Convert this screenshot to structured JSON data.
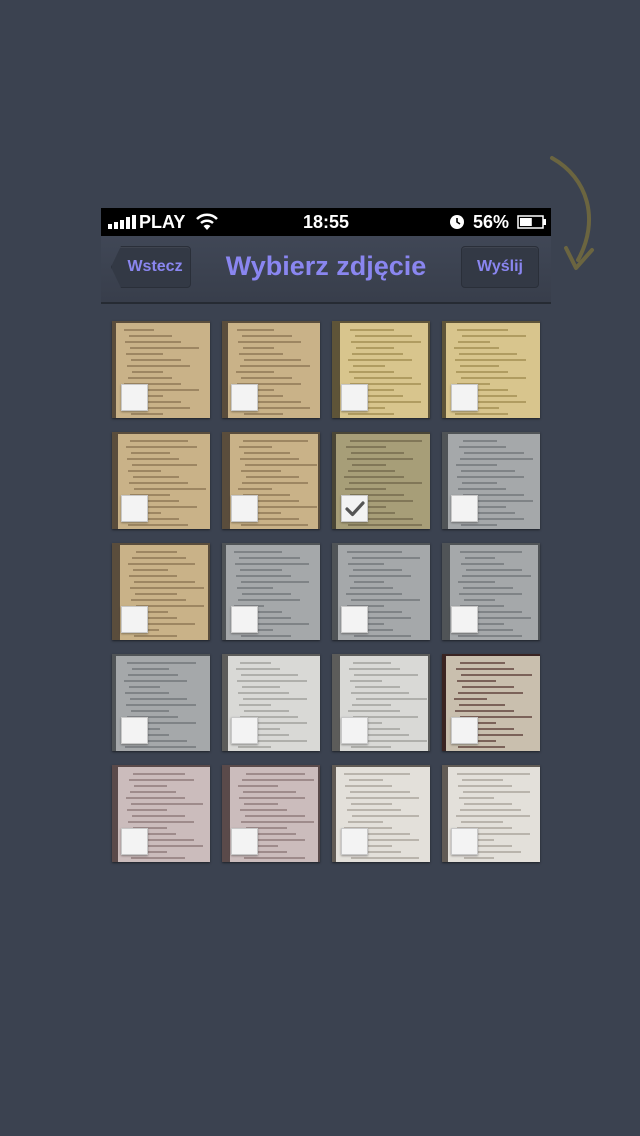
{
  "status_bar": {
    "carrier": "PLAY",
    "time": "18:55",
    "battery_percent": "56%",
    "battery_level": 0.56
  },
  "nav": {
    "title": "Wybierz zdjęcie",
    "back_label": "Wstecz",
    "send_label": "Wyślij"
  },
  "colors": {
    "accent": "#8a86f0",
    "background": "#3b4250"
  },
  "photos": [
    {
      "tone": "warm",
      "checked": false
    },
    {
      "tone": "warm",
      "checked": false
    },
    {
      "tone": "yellow",
      "checked": false
    },
    {
      "tone": "yellow",
      "checked": false
    },
    {
      "tone": "warm",
      "checked": false
    },
    {
      "tone": "warm",
      "checked": false
    },
    {
      "tone": "olive",
      "checked": true
    },
    {
      "tone": "gray",
      "checked": false
    },
    {
      "tone": "warm",
      "checked": false
    },
    {
      "tone": "gray",
      "checked": false
    },
    {
      "tone": "gray",
      "checked": false
    },
    {
      "tone": "gray",
      "checked": false
    },
    {
      "tone": "gray",
      "checked": false
    },
    {
      "tone": "light",
      "checked": false
    },
    {
      "tone": "light",
      "checked": false
    },
    {
      "tone": "dark",
      "checked": false
    },
    {
      "tone": "pink",
      "checked": false
    },
    {
      "tone": "pink",
      "checked": false
    },
    {
      "tone": "paper",
      "checked": false
    },
    {
      "tone": "paper",
      "checked": false
    }
  ]
}
